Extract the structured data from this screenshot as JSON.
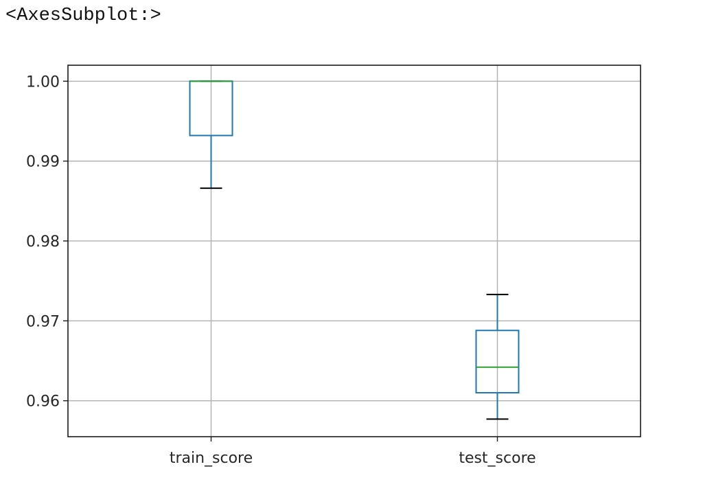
{
  "output_repr": "<AxesSubplot:>",
  "chart_data": {
    "type": "box",
    "categories": [
      "train_score",
      "test_score"
    ],
    "yticks": [
      "0.96",
      "0.97",
      "0.98",
      "0.99",
      "1.00"
    ],
    "ylim": [
      0.9555,
      1.002
    ],
    "grid": true,
    "series": [
      {
        "category": "train_score",
        "whisker_low": 0.9866,
        "q1": 0.9932,
        "median": 1.0,
        "q3": 1.0,
        "whisker_high": 1.0
      },
      {
        "category": "test_score",
        "whisker_low": 0.9577,
        "q1": 0.961,
        "median": 0.9642,
        "q3": 0.9688,
        "whisker_high": 0.9733
      }
    ],
    "colors": {
      "box": "#1f77b4",
      "median": "#2ca02c",
      "whisker": "#1f77b4",
      "cap": "#000000",
      "grid": "#b0b0b0"
    }
  }
}
